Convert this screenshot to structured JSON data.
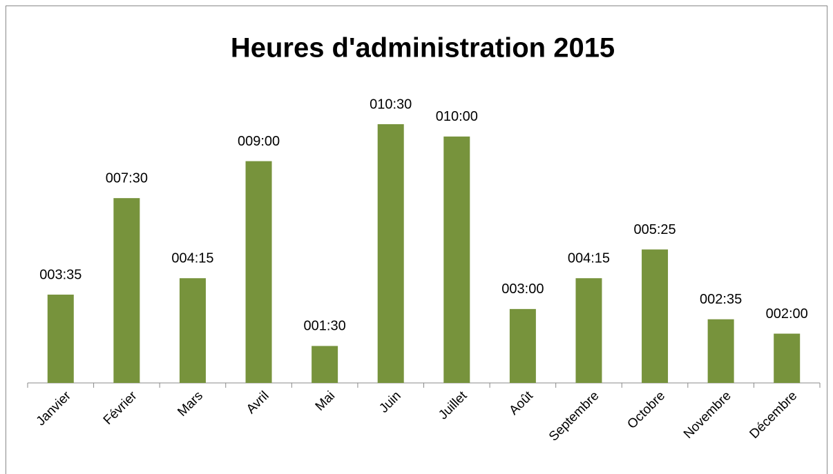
{
  "chart_data": {
    "type": "bar",
    "title": "Heures d'administration 2015",
    "categories": [
      "Janvier",
      "Février",
      "Mars",
      "Avril",
      "Mai",
      "Juin",
      "Juillet",
      "Août",
      "Septembre",
      "Octobre",
      "Novembre",
      "Décembre"
    ],
    "values": [
      215,
      450,
      255,
      540,
      90,
      630,
      600,
      180,
      255,
      325,
      155,
      120
    ],
    "value_labels": [
      "003:35",
      "007:30",
      "004:15",
      "009:00",
      "001:30",
      "010:30",
      "010:00",
      "003:00",
      "004:15",
      "005:25",
      "002:35",
      "002:00"
    ],
    "color": "#77933c"
  }
}
